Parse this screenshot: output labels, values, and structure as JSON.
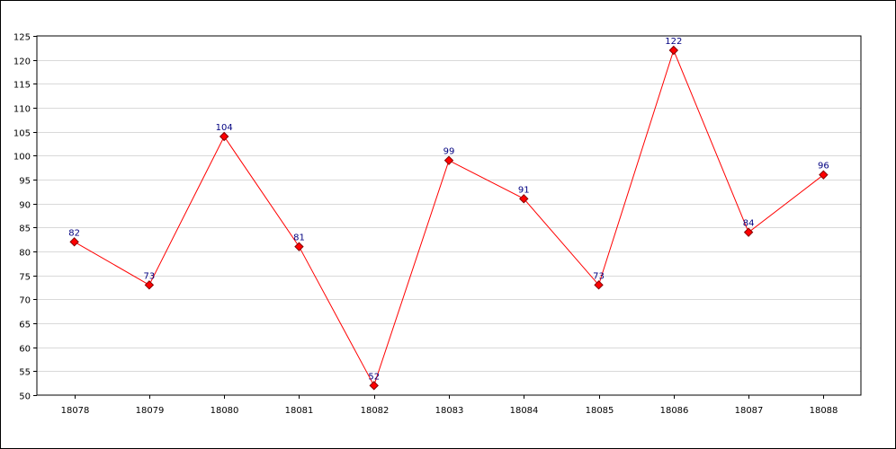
{
  "chart_data": {
    "type": "line",
    "title": "",
    "xlabel": "",
    "ylabel": "",
    "categories": [
      "18078",
      "18079",
      "18080",
      "18081",
      "18082",
      "18083",
      "18084",
      "18085",
      "18086",
      "18087",
      "18088"
    ],
    "series": [
      {
        "values": [
          82,
          73,
          104,
          81,
          52,
          99,
          91,
          73,
          122,
          84,
          96
        ]
      }
    ],
    "ylim": [
      50,
      125
    ],
    "yticks": [
      50,
      55,
      60,
      65,
      70,
      75,
      80,
      85,
      90,
      95,
      100,
      105,
      110,
      115,
      120,
      125
    ],
    "grid": "horizontal",
    "legend": "none",
    "data_labels": true,
    "colors": {
      "line": "#ff0000",
      "marker_fill": "#ff0000",
      "marker_stroke": "#800000",
      "data_label": "#000080",
      "grid": "#d9d9d9",
      "axis": "#000000"
    }
  }
}
